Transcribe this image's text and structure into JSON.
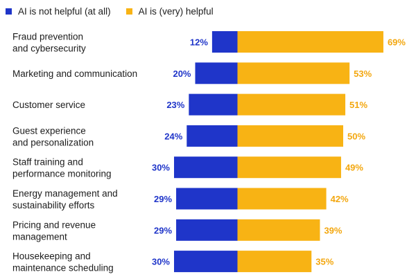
{
  "legend": {
    "negative_label": "AI is not helpful (at all)",
    "positive_label": "AI is (very) helpful"
  },
  "colors": {
    "negative": "#1f35c9",
    "positive": "#f8b314",
    "negative_text": "#1f35c9",
    "positive_text": "#f3a70f"
  },
  "chart_data": {
    "type": "bar",
    "orientation": "horizontal-diverging",
    "title": "",
    "categories": [
      [
        "Fraud prevention",
        "and cybersecurity"
      ],
      [
        "Marketing and communication"
      ],
      [
        "Customer service"
      ],
      [
        "Guest experience",
        "and personalization"
      ],
      [
        "Staff training and",
        "performance monitoring"
      ],
      [
        "Energy management and",
        "sustainability efforts"
      ],
      [
        "Pricing and revenue",
        "management"
      ],
      [
        "Housekeeping and",
        "maintenance scheduling"
      ]
    ],
    "series": [
      {
        "name": "AI is not helpful (at all)",
        "values": [
          12,
          20,
          23,
          24,
          30,
          29,
          29,
          30
        ]
      },
      {
        "name": "AI is (very) helpful",
        "values": [
          69,
          53,
          51,
          50,
          49,
          42,
          39,
          35
        ]
      }
    ],
    "value_suffix": "%"
  }
}
